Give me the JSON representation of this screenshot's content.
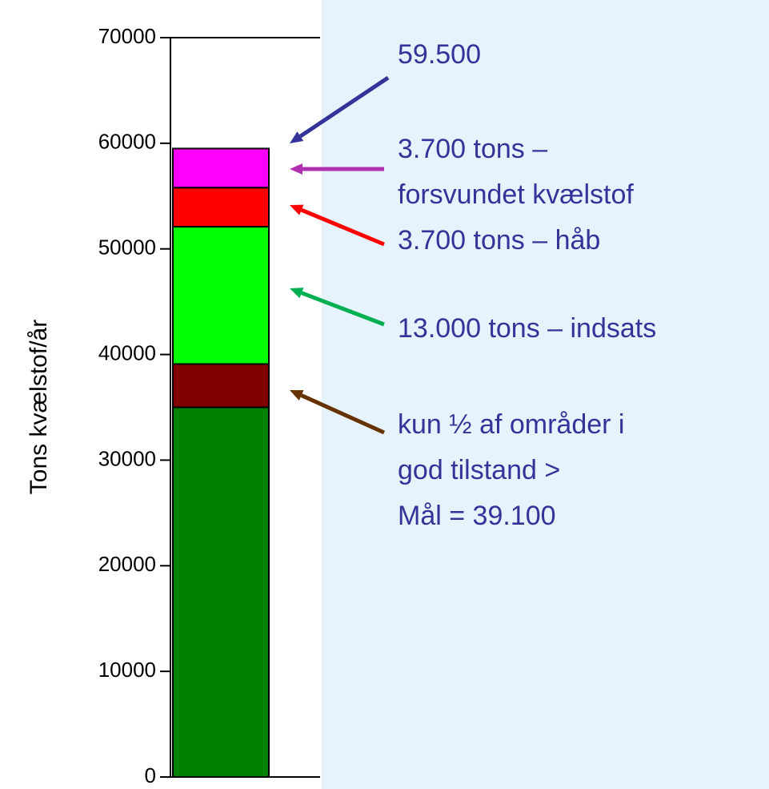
{
  "chart_data": {
    "type": "stacked-bar",
    "ylabel": "Tons kvælstof/år",
    "categories": [
      null
    ],
    "series": [
      {
        "color": "#008000",
        "values": [
          35000
        ]
      },
      {
        "color": "#800000",
        "values": [
          4100
        ]
      },
      {
        "color": "#00ff00",
        "values": [
          13000
        ]
      },
      {
        "color": "#ff0000",
        "values": [
          3700
        ]
      },
      {
        "color": "#ff00ff",
        "values": [
          3700
        ]
      }
    ],
    "ylim": [
      0,
      70000
    ],
    "yticks": [
      0,
      10000,
      20000,
      30000,
      40000,
      50000,
      60000,
      70000
    ],
    "annotations": [
      {
        "lines": [
          "59.500"
        ],
        "color": "#333399"
      },
      {
        "lines": [
          "3.700 tons –",
          "forsvundet kvælstof"
        ],
        "color": "#b030b0"
      },
      {
        "lines": [
          "3.700 tons – håb"
        ],
        "color": "#ff0000"
      },
      {
        "lines": [
          "13.000 tons – indsats"
        ],
        "color": "#00b050"
      },
      {
        "lines": [
          "kun ½ af områder i",
          "god tilstand >",
          "Mål = 39.100"
        ],
        "color": "#663300"
      }
    ],
    "text_color": "#333399"
  }
}
